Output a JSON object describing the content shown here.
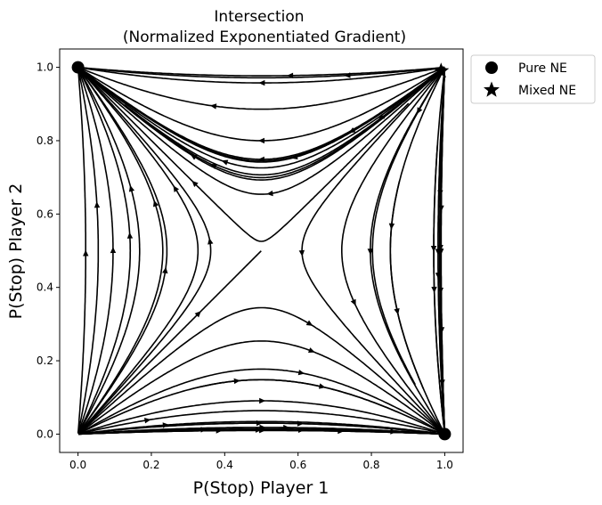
{
  "chart_data": {
    "type": "streamplot",
    "title": "Intersection",
    "subtitle": "(Normalized Exponentiated Gradient)",
    "xlabel": "P(Stop) Player 1",
    "ylabel": "P(Stop) Player 2",
    "xlim": [
      -0.05,
      1.05
    ],
    "ylim": [
      -0.05,
      1.05
    ],
    "xticks": [
      0.0,
      0.2,
      0.4,
      0.6,
      0.8,
      1.0
    ],
    "yticks": [
      0.0,
      0.2,
      0.4,
      0.6,
      0.8,
      1.0
    ],
    "xtick_labels": [
      "0.0",
      "0.2",
      "0.4",
      "0.6",
      "0.8",
      "1.0"
    ],
    "ytick_labels": [
      "0.0",
      "0.2",
      "0.4",
      "0.6",
      "0.8",
      "1.0"
    ],
    "grid": false,
    "legend_position": "outside-upper-right",
    "stream_color": "#000000",
    "legend": [
      {
        "label": "Pure NE",
        "marker": "circle"
      },
      {
        "label": "Mixed NE",
        "marker": "star"
      }
    ],
    "pure_ne": [
      [
        0.0,
        1.0
      ],
      [
        1.0,
        0.0
      ]
    ],
    "mixed_ne": [
      [
        0.99,
        0.99
      ]
    ]
  }
}
